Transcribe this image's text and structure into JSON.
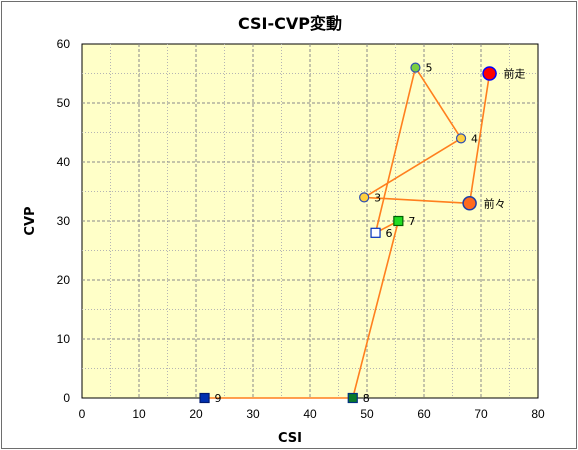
{
  "chart_data": {
    "type": "scatter",
    "title": "CSI-CVP変動",
    "xlabel": "CSI",
    "ylabel": "CVP",
    "xlim": [
      0,
      80
    ],
    "ylim": [
      0,
      60
    ],
    "xticks": [
      "0",
      "10",
      "20",
      "30",
      "40",
      "50",
      "60",
      "70",
      "80"
    ],
    "yticks": [
      "0",
      "10",
      "20",
      "30",
      "40",
      "50",
      "60"
    ],
    "grid": true,
    "plot_background": "#ffffc8",
    "line_color": "#ff7f1e",
    "path_order": [
      "前走",
      "前々",
      "3",
      "4",
      "5",
      "6",
      "7",
      "8",
      "9"
    ],
    "points": [
      {
        "label": "前走",
        "x": 71.5,
        "y": 55,
        "marker": "circle-large",
        "fill": "#ff0000",
        "stroke": "#0000ff"
      },
      {
        "label": "前々",
        "x": 68,
        "y": 33,
        "marker": "circle-large",
        "fill": "#ff6a1e",
        "stroke": "#1a3ea8"
      },
      {
        "label": "3",
        "x": 49.5,
        "y": 34,
        "marker": "circle",
        "fill": "#ffd040",
        "stroke": "#3050b0"
      },
      {
        "label": "4",
        "x": 66.5,
        "y": 44,
        "marker": "circle",
        "fill": "#ffd040",
        "stroke": "#3050b0"
      },
      {
        "label": "5",
        "x": 58.5,
        "y": 56,
        "marker": "circle",
        "fill": "#7ad040",
        "stroke": "#3050b0"
      },
      {
        "label": "6",
        "x": 51.5,
        "y": 28,
        "marker": "square",
        "fill": "#ffffff",
        "stroke": "#0030c0"
      },
      {
        "label": "7",
        "x": 55.5,
        "y": 30,
        "marker": "square",
        "fill": "#22dd22",
        "stroke": "#006000"
      },
      {
        "label": "8",
        "x": 47.5,
        "y": 0,
        "marker": "square",
        "fill": "#0a7a2a",
        "stroke": "#003080"
      },
      {
        "label": "9",
        "x": 21.5,
        "y": 0,
        "marker": "square",
        "fill": "#0030b0",
        "stroke": "#001a70"
      }
    ]
  }
}
